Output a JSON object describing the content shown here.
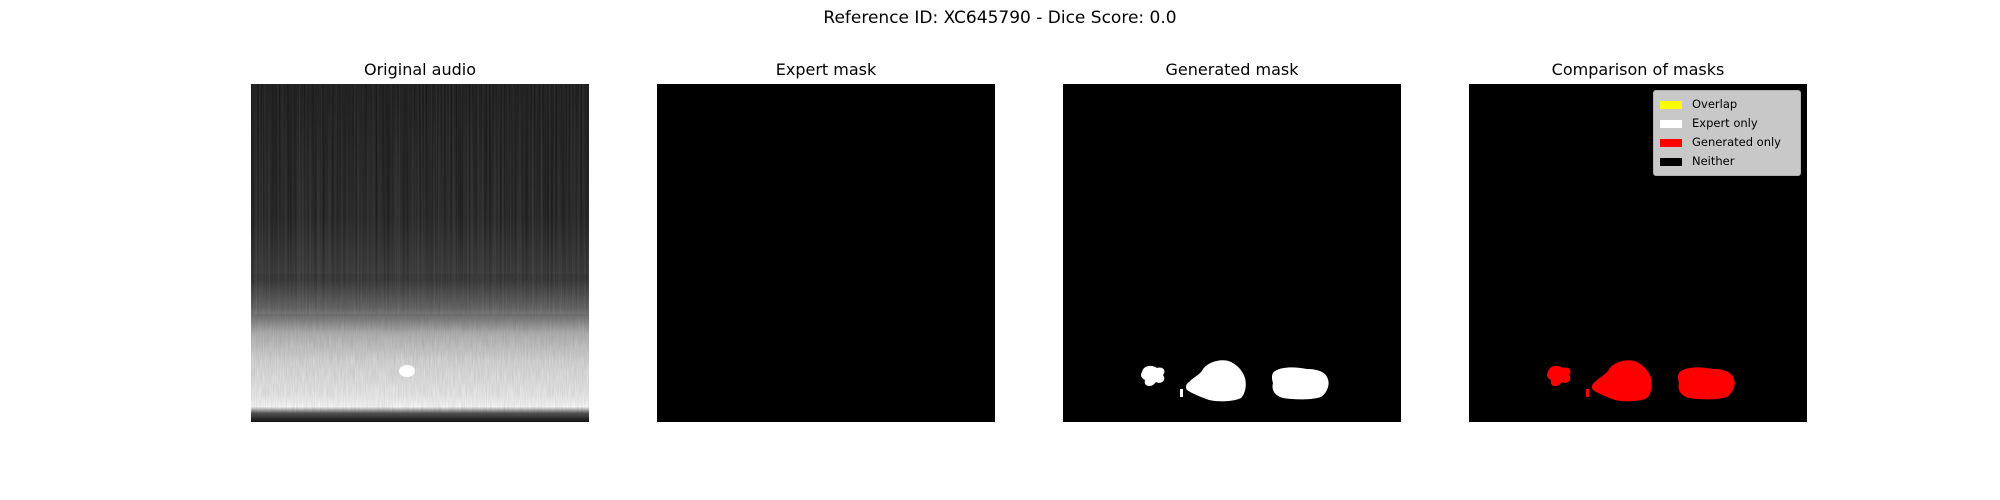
{
  "figure": {
    "suptitle": "Reference ID: XC645790 - Dice Score: 0.0"
  },
  "panels": [
    {
      "title": "Original audio"
    },
    {
      "title": "Expert mask"
    },
    {
      "title": "Generated mask"
    },
    {
      "title": "Comparison of masks"
    }
  ],
  "legend": {
    "items": [
      {
        "label": "Overlap",
        "color": "#ffff00"
      },
      {
        "label": "Expert only",
        "color": "#ffffff"
      },
      {
        "label": "Generated only",
        "color": "#ff0000"
      },
      {
        "label": "Neither",
        "color": "#000000"
      }
    ]
  },
  "metrics": {
    "dice_score": 0.0
  },
  "colors": {
    "background": "#ffffff",
    "mask_background": "#000000",
    "generated_mask": "#ffffff",
    "comparison_generated_only": "#ff0000"
  }
}
